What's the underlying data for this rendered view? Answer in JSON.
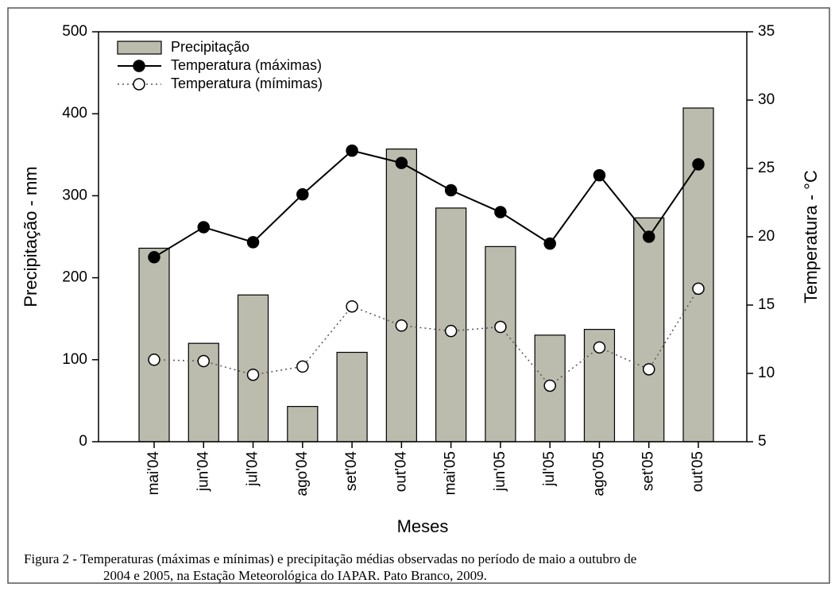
{
  "chart_data": {
    "type": "bar",
    "xlabel": "Meses",
    "ylabel": "Precipitação - mm",
    "y2label": "Temperatura - °C",
    "categories": [
      "mai'04",
      "jun'04",
      "jul'04",
      "ago'04",
      "set'04",
      "out'04",
      "mai'05",
      "jun'05",
      "jul'05",
      "ago'05",
      "set'05",
      "out'05"
    ],
    "series": [
      {
        "name": "Precipitação",
        "type": "bar",
        "color": "#bcbcae",
        "values": [
          236,
          120,
          179,
          43,
          109,
          357,
          285,
          238,
          130,
          137,
          273,
          407
        ]
      },
      {
        "name": "Temperatura (máximas)",
        "type": "line",
        "axis": "y2",
        "color": "#000000",
        "line_style": "solid",
        "marker_fill": "#000000",
        "values": [
          18.5,
          20.7,
          19.6,
          23.1,
          26.3,
          25.4,
          23.4,
          21.8,
          19.5,
          24.5,
          20.0,
          25.3
        ]
      },
      {
        "name": "Temperatura (mímimas)",
        "type": "line",
        "axis": "y2",
        "color": "#555555",
        "line_style": "dotted",
        "marker_fill": "#ffffff",
        "values": [
          11.0,
          10.9,
          9.9,
          10.5,
          14.9,
          13.5,
          13.1,
          13.4,
          9.1,
          11.9,
          10.3,
          16.2
        ]
      }
    ],
    "ylim": [
      0,
      500
    ],
    "yticks": [
      0,
      100,
      200,
      300,
      400,
      500
    ],
    "y2lim": [
      5,
      35
    ],
    "y2ticks": [
      5,
      10,
      15,
      20,
      25,
      30,
      35
    ],
    "legend": "upper left",
    "grid": false
  },
  "caption": {
    "lines": [
      "Figura 2 - Temperaturas (máximas e mínimas) e precipitação médias observadas no período de maio a outubro de",
      "2004 e 2005, na Estação Meteorológica do IAPAR. Pato Branco, 2009."
    ]
  }
}
